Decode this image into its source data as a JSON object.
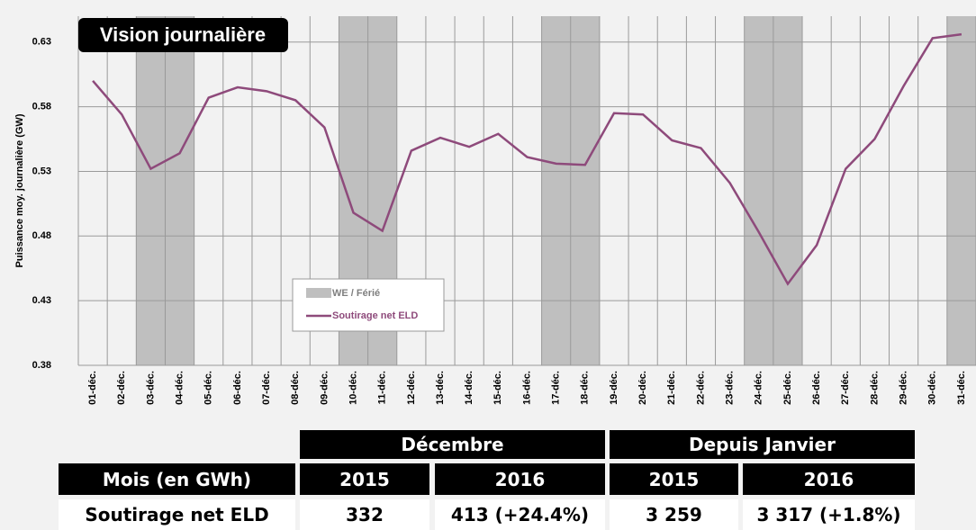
{
  "chart_data": {
    "type": "line",
    "title": "Vision journalière",
    "y_label": "Puissance moy. journalière (GW)",
    "categories": [
      "01-déc.",
      "02-déc.",
      "03-déc.",
      "04-déc.",
      "05-déc.",
      "06-déc.",
      "07-déc.",
      "08-déc.",
      "09-déc.",
      "10-déc.",
      "11-déc.",
      "12-déc.",
      "13-déc.",
      "14-déc.",
      "15-déc.",
      "16-déc.",
      "17-déc.",
      "18-déc.",
      "19-déc.",
      "20-déc.",
      "21-déc.",
      "22-déc.",
      "23-déc.",
      "24-déc.",
      "25-déc.",
      "26-déc.",
      "27-déc.",
      "28-déc.",
      "29-déc.",
      "30-déc.",
      "31-déc."
    ],
    "series": [
      {
        "name": "WE / Férié",
        "color": "#bfbfbf",
        "highlight": [
          false,
          false,
          true,
          true,
          false,
          false,
          false,
          false,
          false,
          true,
          true,
          false,
          false,
          false,
          false,
          false,
          true,
          true,
          false,
          false,
          false,
          false,
          false,
          true,
          true,
          false,
          false,
          false,
          false,
          false,
          true
        ]
      },
      {
        "name": "Soutirage net ELD",
        "color": "#8e4a7b",
        "values": [
          0.6,
          0.574,
          0.532,
          0.544,
          0.587,
          0.595,
          0.592,
          0.585,
          0.564,
          0.498,
          0.484,
          0.546,
          0.556,
          0.549,
          0.559,
          0.541,
          0.536,
          0.535,
          0.575,
          0.574,
          0.554,
          0.548,
          0.521,
          0.483,
          0.443,
          0.473,
          0.532,
          0.555,
          0.596,
          0.633,
          0.636
        ]
      }
    ],
    "ylim": [
      0.38,
      0.65
    ],
    "yticks": [
      0.38,
      0.43,
      0.48,
      0.53,
      0.58,
      0.63
    ],
    "grid": true
  },
  "table": {
    "groups": [
      "Décembre",
      "Depuis Janvier"
    ],
    "header": [
      "Mois (en GWh)",
      "2015",
      "2016",
      "2015",
      "2016"
    ],
    "rows": [
      [
        "Soutirage net ELD",
        "332",
        "413 (+24.4%)",
        "3 259",
        "3 317 (+1.8%)"
      ]
    ]
  }
}
